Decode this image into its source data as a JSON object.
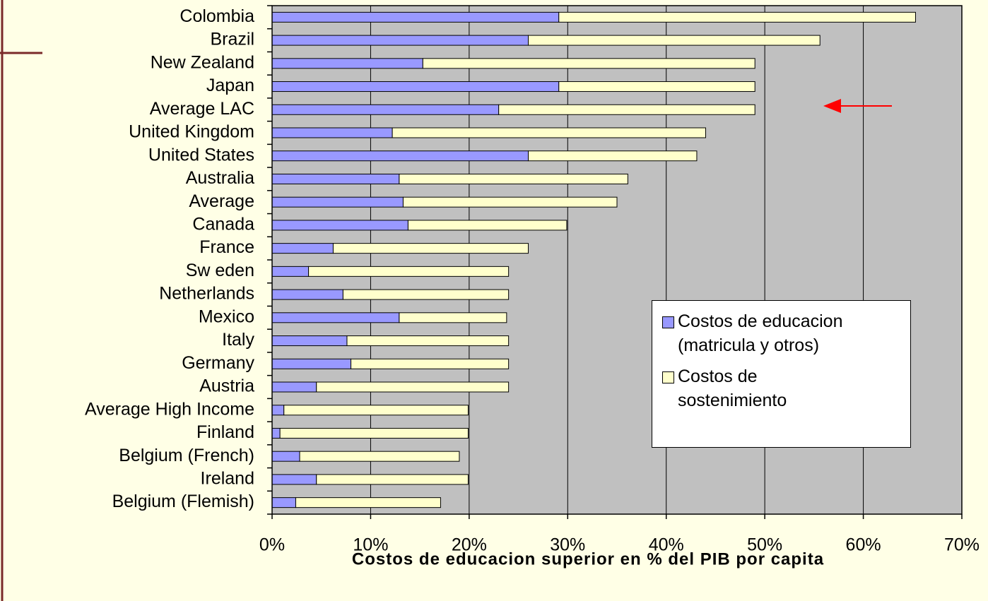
{
  "chart_data": {
    "type": "stacked_barh",
    "x_label": "Costos de educacion superior en % del PIB por capita",
    "categories": [
      "Colombia",
      "Brazil",
      "New Zealand",
      "Japan",
      "Average LAC",
      "United Kingdom",
      "United States",
      "Australia",
      "Average",
      "Canada",
      "France",
      "Sw eden",
      "Netherlands",
      "Mexico",
      "Italy",
      "Germany",
      "Austria",
      "Average High Income",
      "Finland",
      "Belgium (French)",
      "Ireland",
      "Belgium (Flemish)"
    ],
    "series": [
      {
        "name": "Costos de educacion (matricula y otros)",
        "color": "#9999ff",
        "values": [
          29.1,
          26.0,
          15.3,
          29.1,
          23.0,
          12.2,
          26.0,
          12.9,
          13.3,
          13.8,
          6.2,
          3.7,
          7.2,
          12.9,
          7.6,
          8.0,
          4.5,
          1.2,
          0.8,
          2.8,
          4.5,
          2.4
        ]
      },
      {
        "name": "Costos de sostenimiento",
        "color": "#ffffcc",
        "values": [
          36.2,
          29.6,
          33.7,
          19.9,
          26.0,
          31.8,
          17.1,
          23.2,
          21.7,
          16.1,
          19.8,
          20.3,
          16.8,
          10.9,
          16.4,
          16.0,
          19.5,
          18.7,
          19.1,
          16.2,
          15.4,
          14.7
        ]
      }
    ],
    "xlim": [
      0,
      70
    ],
    "xticks": [
      {
        "value": 0,
        "label": "0%"
      },
      {
        "value": 10,
        "label": "10%"
      },
      {
        "value": 20,
        "label": "20%"
      },
      {
        "value": 30,
        "label": "30%"
      },
      {
        "value": 40,
        "label": "40%"
      },
      {
        "value": 50,
        "label": "50%"
      },
      {
        "value": 60,
        "label": "60%"
      },
      {
        "value": 70,
        "label": "70%"
      }
    ],
    "grid": true,
    "legend": "lower right"
  }
}
